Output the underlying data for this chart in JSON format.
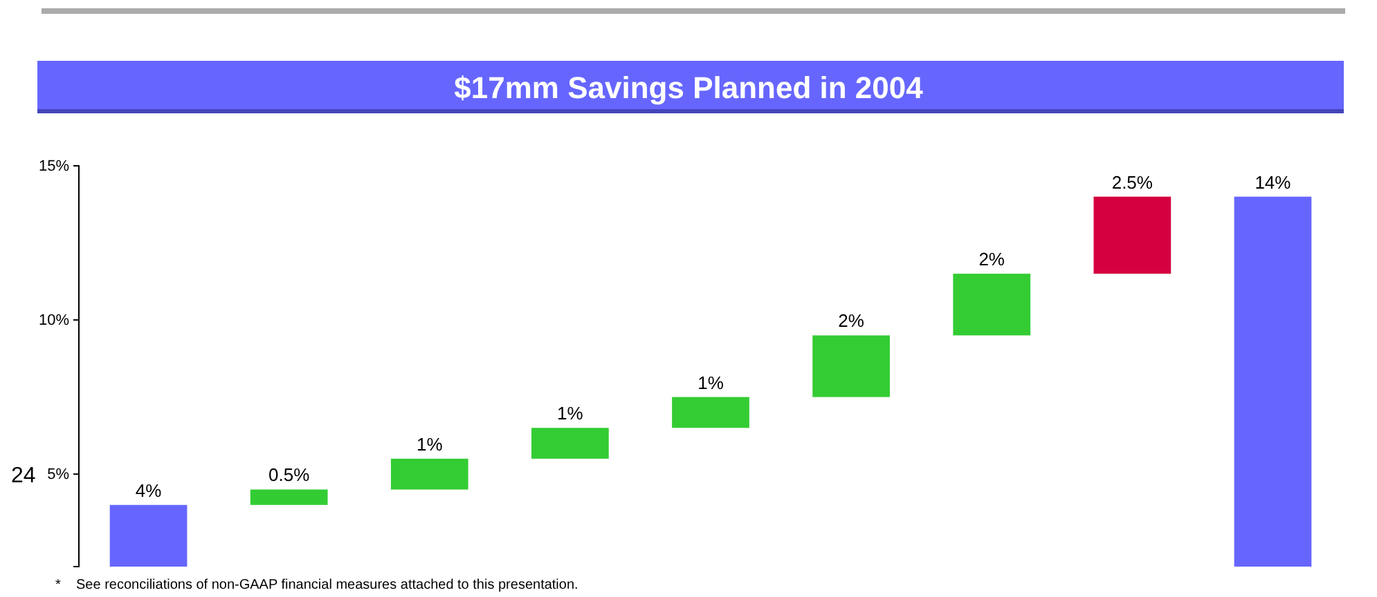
{
  "chart_data": {
    "type": "bar",
    "title": "$17mm Savings Planned in 2004",
    "categories": [
      null,
      null,
      null,
      null,
      null,
      null,
      null,
      null,
      null
    ],
    "values": [
      4,
      0.5,
      1,
      1,
      1,
      2,
      2,
      2.5,
      14
    ],
    "base": [
      0,
      4,
      4.5,
      5.5,
      6.5,
      7.5,
      9.5,
      11.5,
      0
    ],
    "colors": [
      "#6666ff",
      "#33cc33",
      "#33cc33",
      "#33cc33",
      "#33cc33",
      "#33cc33",
      "#33cc33",
      "#d40040",
      "#6666ff"
    ],
    "value_labels": [
      "4%",
      "0.5%",
      "1%",
      "1%",
      "1%",
      "2%",
      "2%",
      "2.5%",
      "14%"
    ],
    "ylim": [
      2,
      15
    ],
    "yticks": [
      {
        "value": 5,
        "label": "5%"
      },
      {
        "value": 10,
        "label": "10%"
      },
      {
        "value": 15,
        "label": "15%"
      }
    ],
    "annotations": [
      "24",
      "*    See reconciliations of non-GAAP financial measures attached to this presentation."
    ],
    "tick_labels": "y"
  }
}
